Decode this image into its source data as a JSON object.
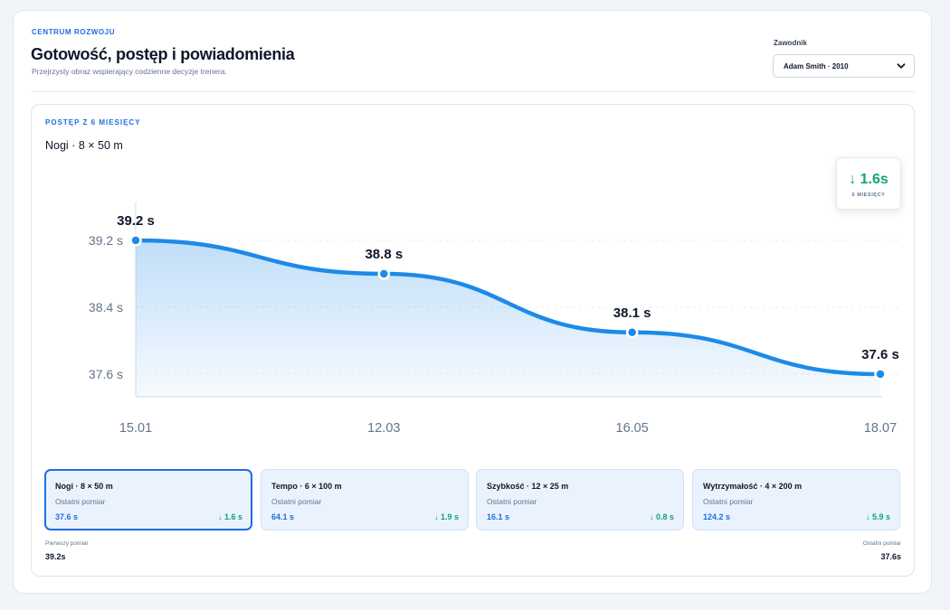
{
  "header": {
    "eyebrow": "CENTRUM ROZWOJU",
    "title": "Gotowość, postęp i powiadomienia",
    "subtitle": "Przejrzysty obraz wspierający codzienne decyzje trenera."
  },
  "athlete": {
    "label": "Zawodnik",
    "selected": "Adam Smith · 2010"
  },
  "progress": {
    "eyebrow": "POSTĘP Z 6 MIESIĘCY",
    "title": "Nogi · 8 × 50 m",
    "delta_value": "↓ 1.6s",
    "delta_label": "6 MIESIĘCY"
  },
  "chart_data": {
    "type": "line",
    "x": [
      "15.01",
      "12.03",
      "16.05",
      "18.07"
    ],
    "values": [
      39.2,
      38.8,
      38.1,
      37.6
    ],
    "point_labels": [
      "39.2 s",
      "38.8 s",
      "38.1 s",
      "37.6 s"
    ],
    "y_ticks": [
      39.2,
      38.4,
      37.6
    ],
    "y_tick_labels": [
      "39.2 s",
      "38.4 s",
      "37.6 s"
    ],
    "y_range": [
      37.6,
      39.2
    ],
    "y_inverted": false,
    "grid": true,
    "area_fill": true,
    "color": "#1d8ae8"
  },
  "exercises": [
    {
      "name": "Nogi · 8 × 50 m",
      "sub": "Ostatni pomiar",
      "value": "37.6 s",
      "delta": "↓ 1.6 s",
      "active": true
    },
    {
      "name": "Tempo · 6 × 100 m",
      "sub": "Ostatni pomiar",
      "value": "64.1 s",
      "delta": "↓ 1.9 s",
      "active": false
    },
    {
      "name": "Szybkość · 12 × 25 m",
      "sub": "Ostatni pomiar",
      "value": "16.1 s",
      "delta": "↓ 0.8 s",
      "active": false
    },
    {
      "name": "Wytrzymałość · 4 × 200 m",
      "sub": "Ostatni pomiar",
      "value": "124.2 s",
      "delta": "↓ 5.9 s",
      "active": false
    }
  ],
  "footer": {
    "first_label": "Pierwszy pomiar",
    "first_value": "39.2s",
    "last_label": "Ostatni pomiar",
    "last_value": "37.6s"
  },
  "colors": {
    "accent": "#1d6fe0",
    "line": "#1d8ae8",
    "positive": "#12a37a"
  }
}
